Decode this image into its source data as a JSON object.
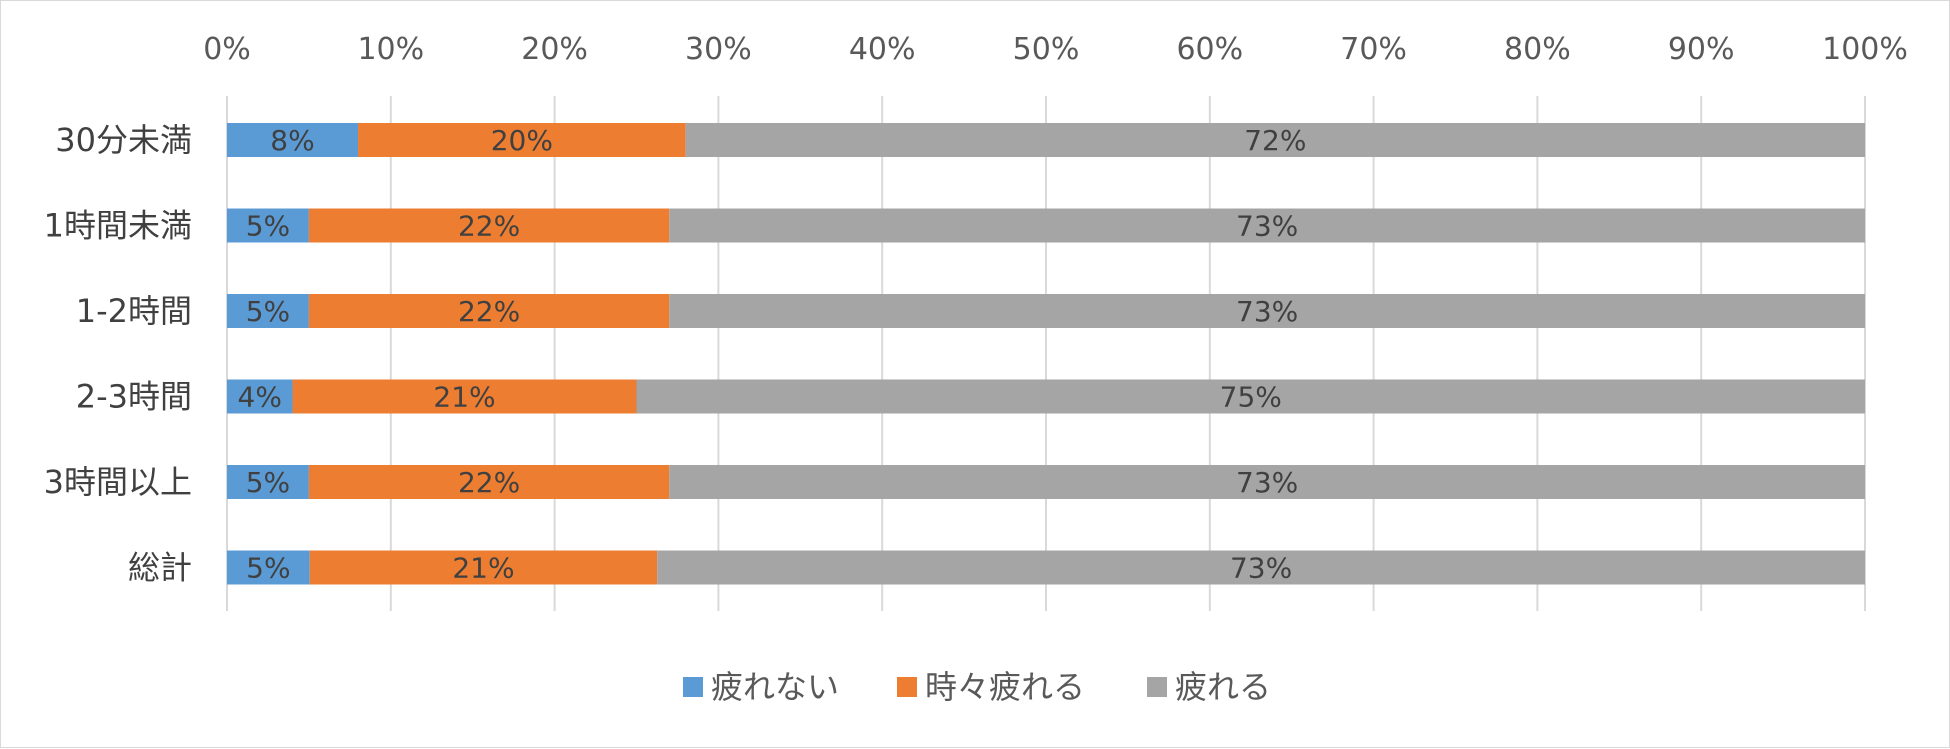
{
  "chart_data": {
    "type": "bar",
    "orientation": "horizontal",
    "stacked": "percent",
    "categories": [
      "30分未満",
      "1時間未満",
      "1-2時間",
      "2-3時間",
      "3時間以上",
      "総計"
    ],
    "series": [
      {
        "name": "疲れない",
        "color": "#5b9bd5",
        "values": [
          8,
          5,
          5,
          4,
          5,
          5
        ],
        "labels": [
          "8%",
          "5%",
          "5%",
          "4%",
          "5%",
          "5%"
        ]
      },
      {
        "name": "時々疲れる",
        "color": "#ed7d31",
        "values": [
          20,
          22,
          22,
          21,
          22,
          21
        ],
        "labels": [
          "20%",
          "22%",
          "22%",
          "21%",
          "22%",
          "21%"
        ]
      },
      {
        "name": "疲れる",
        "color": "#a5a5a5",
        "values": [
          72,
          73,
          73,
          75,
          73,
          73
        ],
        "labels": [
          "72%",
          "73%",
          "73%",
          "75%",
          "73%",
          "73%"
        ]
      }
    ],
    "x_ticks": [
      "0%",
      "10%",
      "20%",
      "30%",
      "40%",
      "50%",
      "60%",
      "70%",
      "80%",
      "90%",
      "100%"
    ],
    "xlim": [
      0,
      100
    ],
    "grid": true,
    "legend_position": "bottom",
    "title": "",
    "xlabel": "",
    "ylabel": ""
  }
}
